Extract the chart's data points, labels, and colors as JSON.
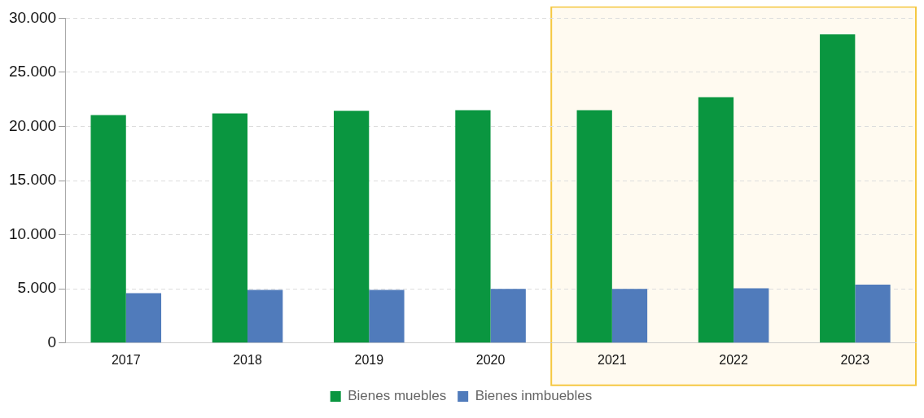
{
  "chart_data": {
    "type": "bar",
    "categories": [
      "2017",
      "2018",
      "2019",
      "2020",
      "2021",
      "2022",
      "2023"
    ],
    "series": [
      {
        "name": "Bienes muebles",
        "color": "#0a9640",
        "values": [
          21050,
          21200,
          21450,
          21500,
          21500,
          22700,
          28500
        ]
      },
      {
        "name": "Bienes inmbuebles",
        "color": "#507bbb",
        "values": [
          4600,
          4900,
          4900,
          5000,
          5000,
          5050,
          5400
        ]
      }
    ],
    "ylim": [
      0,
      30000
    ],
    "yticks": [
      {
        "value": 0,
        "label": "0"
      },
      {
        "value": 5000,
        "label": "5.000"
      },
      {
        "value": 10000,
        "label": "10.000"
      },
      {
        "value": 15000,
        "label": "15.000"
      },
      {
        "value": 20000,
        "label": "20.000"
      },
      {
        "value": 25000,
        "label": "25.000"
      },
      {
        "value": 30000,
        "label": "30.000"
      }
    ],
    "bands": [
      {
        "axis": "x",
        "from": "2021",
        "to": "2023",
        "color": "#fffaf0"
      }
    ],
    "grid": "y",
    "legend": "bottom"
  }
}
